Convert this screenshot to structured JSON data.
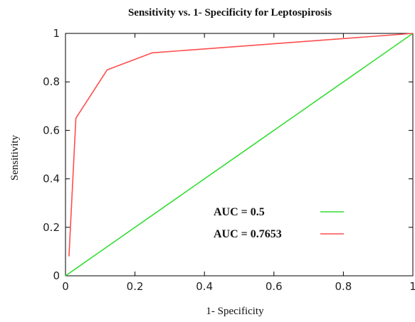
{
  "chart_data": {
    "type": "line",
    "title": "Sensitivity vs. 1- Specificity for Leptospirosis",
    "xlabel": "1- Specificity",
    "ylabel": "Sensitivity",
    "xlim": [
      0,
      1
    ],
    "ylim": [
      0,
      1
    ],
    "x_ticks": [
      "0",
      "0.2",
      "0.4",
      "0.6",
      "0.8",
      "1"
    ],
    "y_ticks": [
      "0",
      "0.2",
      "0.4",
      "0.6",
      "0.8",
      "1"
    ],
    "grid": false,
    "legend_position": "bottom-right",
    "series": [
      {
        "name": "AUC = 0.5",
        "color": "#33dd33",
        "x": [
          0,
          1
        ],
        "y": [
          0,
          1
        ]
      },
      {
        "name": "AUC = 0.7653",
        "color": "#ff4d4d",
        "x": [
          0.01,
          0.03,
          0.12,
          0.25,
          1
        ],
        "y": [
          0.08,
          0.65,
          0.85,
          0.92,
          1
        ]
      }
    ]
  }
}
